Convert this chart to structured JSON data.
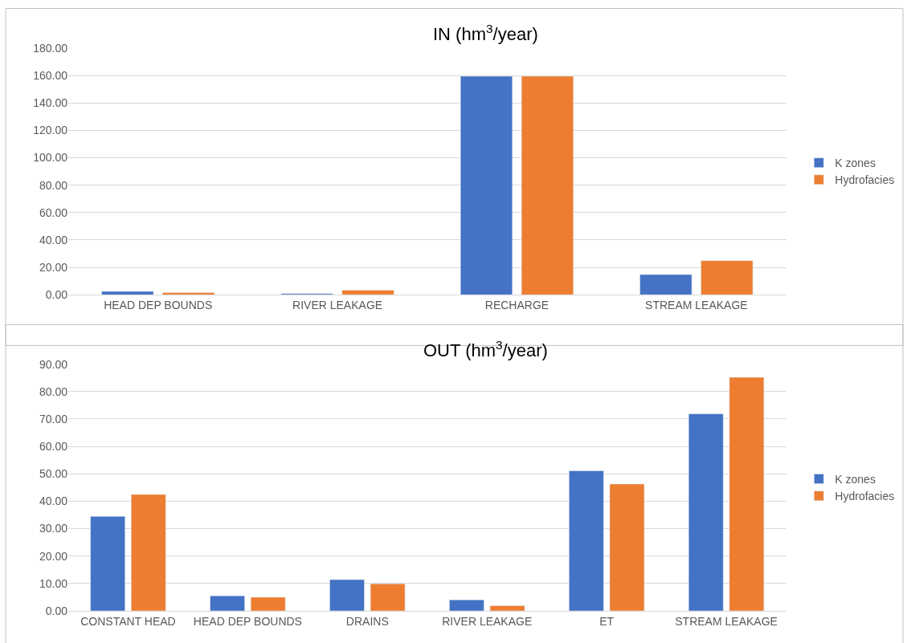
{
  "chart_data": [
    {
      "type": "bar",
      "title": "IN (hm$^{3}$/year)",
      "categories": [
        "HEAD DEP BOUNDS",
        "RIVER LEAKAGE",
        "RECHARGE",
        "STREAM LEAKAGE"
      ],
      "series": [
        {
          "name": "K zones",
          "color": "#4472c4",
          "values": [
            2.5,
            0.8,
            159.5,
            14.8
          ]
        },
        {
          "name": "Hydrofacies",
          "color": "#ed7d31",
          "values": [
            1.6,
            3.4,
            159.5,
            24.9
          ]
        }
      ],
      "ylim": [
        0,
        180
      ],
      "yticks": [
        {
          "value": 0,
          "label": "0.00"
        },
        {
          "value": 20,
          "label": "20.00"
        },
        {
          "value": 40,
          "label": "40.00"
        },
        {
          "value": 60,
          "label": "60.00"
        },
        {
          "value": 80,
          "label": "80.00"
        },
        {
          "value": 100,
          "label": "100.00"
        },
        {
          "value": 120,
          "label": "120.00"
        },
        {
          "value": 140,
          "label": "140.00"
        },
        {
          "value": 160,
          "label": "160.00"
        },
        {
          "value": 180,
          "label": "180.00"
        }
      ],
      "grid": "y",
      "legend": "right"
    },
    {
      "type": "bar",
      "title": "OUT (hm$^{3}$/year)",
      "categories": [
        "CONSTANT HEAD",
        "HEAD DEP BOUNDS",
        "DRAINS",
        "RIVER LEAKAGE",
        "ET",
        "STREAM LEAKAGE"
      ],
      "series": [
        {
          "name": "K zones",
          "color": "#4472c4",
          "values": [
            34.5,
            5.5,
            11.4,
            4.0,
            51.1,
            71.9
          ]
        },
        {
          "name": "Hydrofacies",
          "color": "#ed7d31",
          "values": [
            42.5,
            5.0,
            9.9,
            1.9,
            46.3,
            85.2
          ]
        }
      ],
      "ylim": [
        0,
        90
      ],
      "yticks": [
        {
          "value": 0,
          "label": "0.00"
        },
        {
          "value": 10,
          "label": "10.00"
        },
        {
          "value": 20,
          "label": "20.00"
        },
        {
          "value": 30,
          "label": "30.00"
        },
        {
          "value": 40,
          "label": "40.00"
        },
        {
          "value": 50,
          "label": "50.00"
        },
        {
          "value": 60,
          "label": "60.00"
        },
        {
          "value": 70,
          "label": "70.00"
        },
        {
          "value": 80,
          "label": "80.00"
        },
        {
          "value": 90,
          "label": "90.00"
        }
      ],
      "grid": "y",
      "legend": "right"
    }
  ]
}
